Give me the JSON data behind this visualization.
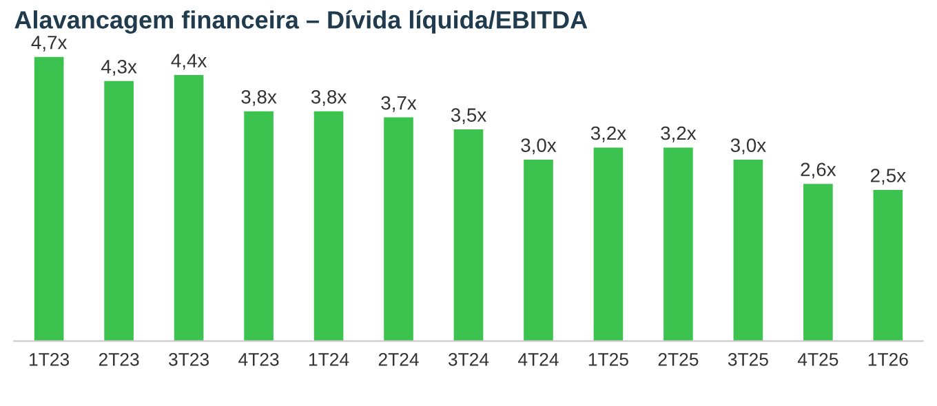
{
  "chart_data": {
    "type": "bar",
    "title": "Alavancagem financeira – Dívida líquida/EBITDA",
    "categories": [
      "1T23",
      "2T23",
      "3T23",
      "4T23",
      "1T24",
      "2T24",
      "3T24",
      "4T24",
      "1T25",
      "2T25",
      "3T25",
      "4T25",
      "1T26"
    ],
    "values": [
      4.7,
      4.3,
      4.4,
      3.8,
      3.8,
      3.7,
      3.5,
      3.0,
      3.2,
      3.2,
      3.0,
      2.6,
      2.5
    ],
    "value_labels": [
      "4,7x",
      "4,3x",
      "4,4x",
      "3,8x",
      "3,8x",
      "3,7x",
      "3,5x",
      "3,0x",
      "3,2x",
      "3,2x",
      "3,0x",
      "2,6x",
      "2,5x"
    ],
    "color": "#3cc24e",
    "grid": false,
    "legend": false
  }
}
